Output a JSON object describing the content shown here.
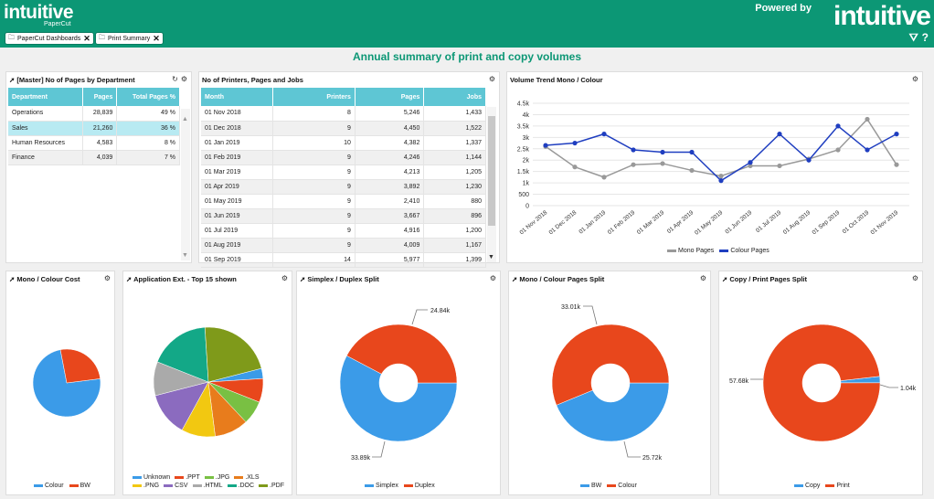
{
  "header": {
    "logo": "intuitive",
    "logo_sub": "PaperCut",
    "powered_by": "Powered by",
    "brand": "intuitive",
    "tabs": [
      "PaperCut Dashboards",
      "Print Summary"
    ]
  },
  "page_title": "Annual summary of print and copy volumes",
  "colors": {
    "header": "#0c9775",
    "blue": "#3b9be8",
    "orange": "#e8471c",
    "table_head": "#5ec6d4",
    "mono": "#999999",
    "colour": "#1f3ec0"
  },
  "pages_dept": {
    "title": "[Master] No of Pages by Department",
    "headers": [
      "Department",
      "Pages",
      "Total Pages %"
    ],
    "rows": [
      [
        "Operations",
        "28,839",
        "49 %"
      ],
      [
        "Sales",
        "21,260",
        "36 %"
      ],
      [
        "Human Resources",
        "4,583",
        "8 %"
      ],
      [
        "Finance",
        "4,039",
        "7 %"
      ]
    ]
  },
  "printers": {
    "title": "No of Printers, Pages and Jobs",
    "headers": [
      "Month",
      "Printers",
      "Pages",
      "Jobs"
    ],
    "rows": [
      [
        "01 Nov 2018",
        "8",
        "5,246",
        "1,433"
      ],
      [
        "01 Dec 2018",
        "9",
        "4,450",
        "1,522"
      ],
      [
        "01 Jan 2019",
        "10",
        "4,382",
        "1,337"
      ],
      [
        "01 Feb 2019",
        "9",
        "4,246",
        "1,144"
      ],
      [
        "01 Mar 2019",
        "9",
        "4,213",
        "1,205"
      ],
      [
        "01 Apr 2019",
        "9",
        "3,892",
        "1,230"
      ],
      [
        "01 May 2019",
        "9",
        "2,410",
        "880"
      ],
      [
        "01 Jun 2019",
        "9",
        "3,667",
        "896"
      ],
      [
        "01 Jul 2019",
        "9",
        "4,916",
        "1,200"
      ],
      [
        "01 Aug 2019",
        "9",
        "4,009",
        "1,167"
      ],
      [
        "01 Sep 2019",
        "14",
        "5,977",
        "1,399"
      ]
    ]
  },
  "trend": {
    "title": "Volume Trend Mono / Colour",
    "legend": [
      "Mono Pages",
      "Colour Pages"
    ]
  },
  "pies": {
    "mono_cost": {
      "title": "Mono / Colour Cost",
      "legend": [
        "Colour",
        "BW"
      ]
    },
    "app_ext": {
      "title": "Application Ext. - Top 15 shown",
      "legend": [
        "Unknown",
        ".PPT",
        ".JPG",
        ".XLS",
        ".PNG",
        "CSV",
        ".HTML",
        ".DOC",
        ".PDF"
      ]
    },
    "simplex": {
      "title": "Simplex / Duplex Split",
      "legend": [
        "Simplex",
        "Duplex"
      ],
      "labels": [
        "24.84k",
        "33.89k"
      ]
    },
    "mono_pages": {
      "title": "Mono / Colour Pages Split",
      "legend": [
        "BW",
        "Colour"
      ],
      "labels": [
        "33.01k",
        "25.72k"
      ]
    },
    "copy_print": {
      "title": "Copy / Print Pages Split",
      "legend": [
        "Copy",
        "Print"
      ],
      "labels": [
        "57.68k",
        "1.04k"
      ]
    }
  },
  "chart_data": [
    {
      "type": "line",
      "title": "Volume Trend Mono / Colour",
      "x": [
        "01 Nov 2018",
        "01 Dec 2018",
        "01 Jan 2019",
        "01 Feb 2019",
        "01 Mar 2019",
        "01 Apr 2019",
        "01 May 2019",
        "01 Jun 2019",
        "01 Jul 2019",
        "01 Aug 2019",
        "01 Sep 2019",
        "01 Oct 2019",
        "01 Nov 2019"
      ],
      "yticks": [
        "0",
        "500",
        "1k",
        "1.5k",
        "2k",
        "2.5k",
        "3k",
        "3.5k",
        "4k",
        "4.5k"
      ],
      "ylim": [
        0,
        4500
      ],
      "series": [
        {
          "name": "Mono Pages",
          "color": "#999999",
          "values": [
            2600,
            1700,
            1250,
            1800,
            1850,
            1550,
            1300,
            1750,
            1750,
            2050,
            2450,
            3800,
            1800
          ]
        },
        {
          "name": "Colour Pages",
          "color": "#1f3ec0",
          "values": [
            2650,
            2750,
            3150,
            2450,
            2350,
            2350,
            1100,
            1900,
            3150,
            2000,
            3500,
            2450,
            3150
          ]
        }
      ]
    },
    {
      "type": "pie",
      "title": "Mono / Colour Cost",
      "categories": [
        "Colour",
        "BW"
      ],
      "values": [
        74,
        26
      ]
    },
    {
      "type": "pie",
      "title": "Application Ext. - Top 15 shown",
      "categories": [
        "Unknown",
        ".PPT",
        ".JPG",
        ".XLS",
        ".PNG",
        "CSV",
        ".HTML",
        ".DOC",
        ".PDF"
      ],
      "values": [
        3,
        7,
        7,
        10,
        10,
        13,
        10,
        18,
        22
      ]
    },
    {
      "type": "pie",
      "title": "Simplex / Duplex Split",
      "categories": [
        "Simplex",
        "Duplex"
      ],
      "values": [
        33890,
        24840
      ]
    },
    {
      "type": "pie",
      "title": "Mono / Colour Pages Split",
      "categories": [
        "BW",
        "Colour"
      ],
      "values": [
        25720,
        33010
      ]
    },
    {
      "type": "pie",
      "title": "Copy / Print Pages Split",
      "categories": [
        "Copy",
        "Print"
      ],
      "values": [
        1040,
        57680
      ]
    }
  ]
}
